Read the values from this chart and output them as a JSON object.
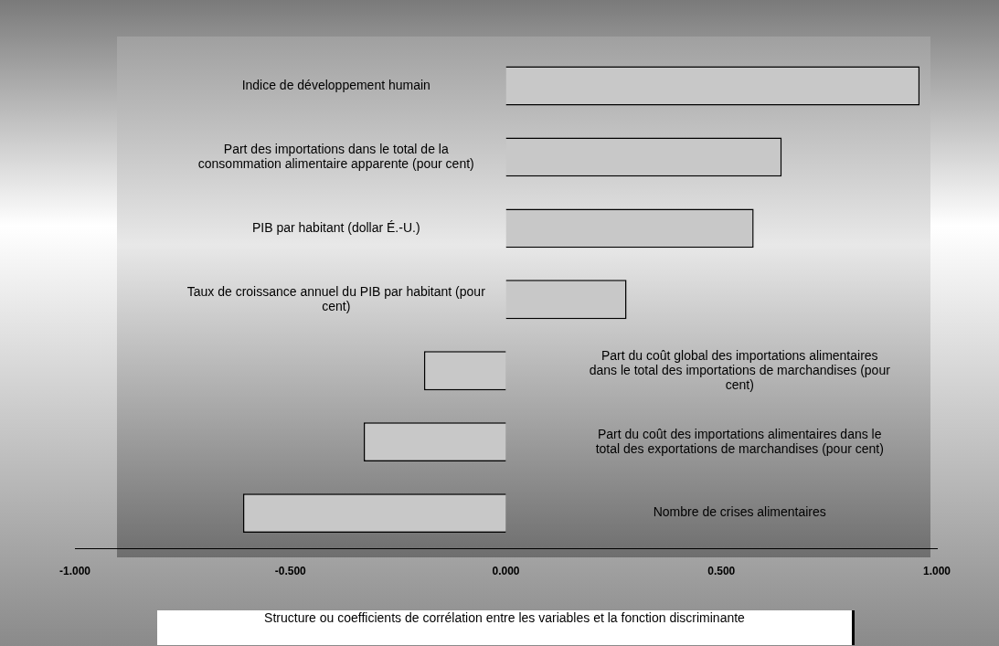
{
  "chart_data": {
    "type": "bar",
    "orientation": "horizontal",
    "categories": [
      "Indice de développement humain",
      "Part des importations dans le total de la consommation alimentaire apparente (pour cent)",
      "PIB par habitant (dollar É.-U.)",
      "Taux de croissance annuel du PIB par habitant (pour cent)",
      "Part du coût global des importations alimentaires dans le total des importations de marchandises (pour cent)",
      "Part du coût des importations alimentaires dans le total des exportations de marchandises (pour cent)",
      "Nombre de crises alimentaires"
    ],
    "values": [
      0.96,
      0.64,
      0.575,
      0.28,
      -0.19,
      -0.33,
      -0.61
    ],
    "color": "#c8c8c8",
    "xlim": [
      -1,
      1
    ],
    "xticks": [
      {
        "value": -1,
        "label": "-1.000"
      },
      {
        "value": -0.5,
        "label": "-0.500"
      },
      {
        "value": 0,
        "label": "0.000"
      },
      {
        "value": 0.5,
        "label": "0.500"
      },
      {
        "value": 1,
        "label": "1.000"
      }
    ],
    "xlabel": "Structure ou coefficients de corrélation entre les variables et la fonction discriminante",
    "grid": false,
    "legend": false
  }
}
